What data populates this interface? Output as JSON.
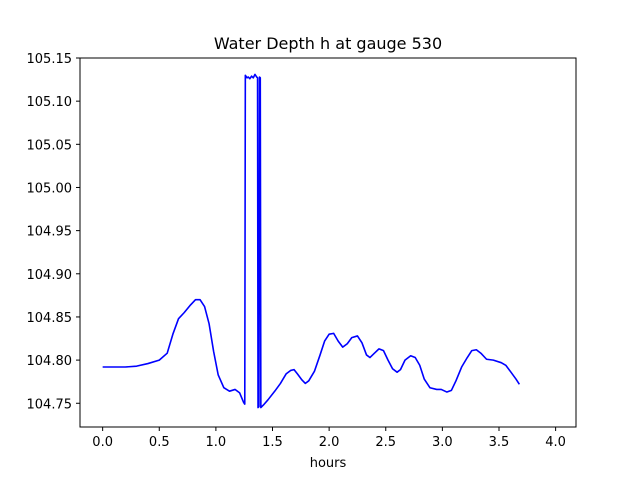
{
  "chart_data": {
    "type": "line",
    "title": "Water Depth h at gauge 530",
    "xlabel": "hours",
    "ylabel": "",
    "xlim": [
      -0.2,
      4.18
    ],
    "ylim": [
      104.7225,
      105.15
    ],
    "grid": false,
    "x_ticks": [
      {
        "value": 0.0,
        "label": "0.0"
      },
      {
        "value": 0.5,
        "label": "0.5"
      },
      {
        "value": 1.0,
        "label": "1.0"
      },
      {
        "value": 1.5,
        "label": "1.5"
      },
      {
        "value": 2.0,
        "label": "2.0"
      },
      {
        "value": 2.5,
        "label": "2.5"
      },
      {
        "value": 3.0,
        "label": "3.0"
      },
      {
        "value": 3.5,
        "label": "3.5"
      },
      {
        "value": 4.0,
        "label": "4.0"
      }
    ],
    "y_ticks": [
      {
        "value": 104.75,
        "label": "104.75"
      },
      {
        "value": 104.8,
        "label": "104.80"
      },
      {
        "value": 104.85,
        "label": "104.85"
      },
      {
        "value": 104.9,
        "label": "104.90"
      },
      {
        "value": 104.95,
        "label": "104.95"
      },
      {
        "value": 105.0,
        "label": "105.00"
      },
      {
        "value": 105.05,
        "label": "105.05"
      },
      {
        "value": 105.1,
        "label": "105.10"
      },
      {
        "value": 105.15,
        "label": "105.15"
      }
    ],
    "series": [
      {
        "color": "#0000ff",
        "points": [
          [
            0.0,
            104.792
          ],
          [
            0.2,
            104.792
          ],
          [
            0.3,
            104.793
          ],
          [
            0.4,
            104.796
          ],
          [
            0.5,
            104.8
          ],
          [
            0.57,
            104.808
          ],
          [
            0.62,
            104.83
          ],
          [
            0.67,
            104.848
          ],
          [
            0.72,
            104.855
          ],
          [
            0.77,
            104.863
          ],
          [
            0.82,
            104.87
          ],
          [
            0.86,
            104.87
          ],
          [
            0.9,
            104.862
          ],
          [
            0.94,
            104.842
          ],
          [
            0.98,
            104.81
          ],
          [
            1.02,
            104.783
          ],
          [
            1.07,
            104.768
          ],
          [
            1.12,
            104.764
          ],
          [
            1.17,
            104.766
          ],
          [
            1.21,
            104.762
          ],
          [
            1.245,
            104.751
          ],
          [
            1.255,
            104.749
          ],
          [
            1.26,
            105.13
          ],
          [
            1.275,
            105.127
          ],
          [
            1.285,
            105.128
          ],
          [
            1.3,
            105.126
          ],
          [
            1.315,
            105.129
          ],
          [
            1.33,
            105.127
          ],
          [
            1.345,
            105.131
          ],
          [
            1.36,
            105.128
          ],
          [
            1.368,
            105.127
          ],
          [
            1.372,
            104.745
          ],
          [
            1.38,
            104.746
          ],
          [
            1.385,
            105.128
          ],
          [
            1.392,
            105.127
          ],
          [
            1.397,
            104.745
          ],
          [
            1.42,
            104.748
          ],
          [
            1.46,
            104.754
          ],
          [
            1.52,
            104.764
          ],
          [
            1.57,
            104.773
          ],
          [
            1.62,
            104.784
          ],
          [
            1.66,
            104.788
          ],
          [
            1.69,
            104.789
          ],
          [
            1.72,
            104.784
          ],
          [
            1.76,
            104.777
          ],
          [
            1.79,
            104.773
          ],
          [
            1.82,
            104.776
          ],
          [
            1.87,
            104.787
          ],
          [
            1.92,
            104.806
          ],
          [
            1.96,
            104.822
          ],
          [
            2.0,
            104.83
          ],
          [
            2.04,
            104.831
          ],
          [
            2.08,
            104.822
          ],
          [
            2.12,
            104.815
          ],
          [
            2.16,
            104.819
          ],
          [
            2.2,
            104.826
          ],
          [
            2.25,
            104.828
          ],
          [
            2.29,
            104.82
          ],
          [
            2.33,
            104.806
          ],
          [
            2.36,
            104.803
          ],
          [
            2.4,
            104.808
          ],
          [
            2.44,
            104.813
          ],
          [
            2.48,
            104.811
          ],
          [
            2.52,
            104.8
          ],
          [
            2.56,
            104.79
          ],
          [
            2.6,
            104.786
          ],
          [
            2.63,
            104.789
          ],
          [
            2.67,
            104.8
          ],
          [
            2.72,
            104.805
          ],
          [
            2.76,
            104.803
          ],
          [
            2.8,
            104.794
          ],
          [
            2.84,
            104.778
          ],
          [
            2.89,
            104.768
          ],
          [
            2.95,
            104.766
          ],
          [
            2.99,
            104.766
          ],
          [
            3.04,
            104.763
          ],
          [
            3.08,
            104.765
          ],
          [
            3.12,
            104.776
          ],
          [
            3.17,
            104.792
          ],
          [
            3.22,
            104.803
          ],
          [
            3.26,
            104.811
          ],
          [
            3.3,
            104.812
          ],
          [
            3.34,
            104.808
          ],
          [
            3.39,
            104.801
          ],
          [
            3.45,
            104.8
          ],
          [
            3.52,
            104.797
          ],
          [
            3.56,
            104.794
          ],
          [
            3.6,
            104.787
          ],
          [
            3.65,
            104.778
          ],
          [
            3.68,
            104.772
          ]
        ]
      }
    ]
  }
}
